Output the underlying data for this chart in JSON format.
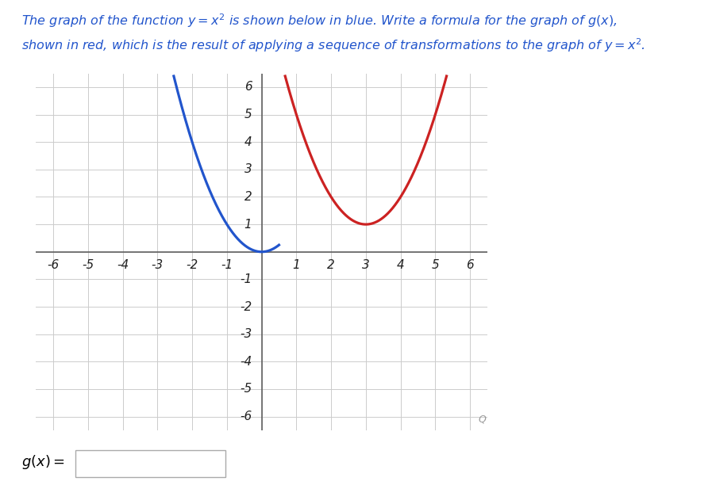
{
  "title_line1": "The graph of the function $y = x^2$ is shown below in blue. Write a formula for the graph of $g(x)$,",
  "title_line2": "shown in red, which is the result of applying a sequence of transformations to the graph of $y = x^2$.",
  "blue_color": "#2255cc",
  "red_color": "#cc2222",
  "xlim": [
    -6.5,
    6.5
  ],
  "ylim": [
    -6.5,
    6.5
  ],
  "xticks": [
    -6,
    -5,
    -4,
    -3,
    -2,
    -1,
    1,
    2,
    3,
    4,
    5,
    6
  ],
  "yticks": [
    -6,
    -5,
    -4,
    -3,
    -2,
    -1,
    1,
    2,
    3,
    4,
    5,
    6
  ],
  "grid_color": "#cccccc",
  "axis_color": "#555555",
  "title_color": "#2255cc",
  "background_color": "#ffffff",
  "line_width": 2.3,
  "tick_fontsize": 11,
  "title_fontsize": 11.5
}
